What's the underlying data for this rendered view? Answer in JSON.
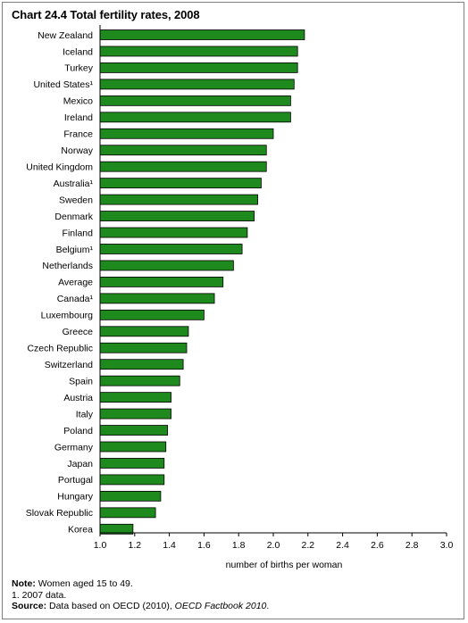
{
  "chart_data": {
    "type": "bar",
    "orientation": "horizontal",
    "title": "Chart 24.4 Total fertility rates, 2008",
    "xlabel": "number of births per woman",
    "ylabel": "",
    "xlim": [
      1.0,
      3.0
    ],
    "x_ticks": [
      "1.0",
      "1.2",
      "1.4",
      "1.6",
      "1.8",
      "2.0",
      "2.2",
      "2.4",
      "2.6",
      "2.8",
      "3.0"
    ],
    "bar_color": "#1e8a1e",
    "categories": [
      "New Zealand",
      "Iceland",
      "Turkey",
      "United States¹",
      "Mexico",
      "Ireland",
      "France",
      "Norway",
      "United Kingdom",
      "Australia¹",
      "Sweden",
      "Denmark",
      "Finland",
      "Belgium¹",
      "Netherlands",
      "Average",
      "Canada¹",
      "Luxembourg",
      "Greece",
      "Czech Republic",
      "Switzerland",
      "Spain",
      "Austria",
      "Italy",
      "Poland",
      "Germany",
      "Japan",
      "Portugal",
      "Hungary",
      "Slovak Republic",
      "Korea"
    ],
    "values": [
      2.18,
      2.14,
      2.14,
      2.12,
      2.1,
      2.1,
      2.0,
      1.96,
      1.96,
      1.93,
      1.91,
      1.89,
      1.85,
      1.82,
      1.77,
      1.71,
      1.66,
      1.6,
      1.51,
      1.5,
      1.48,
      1.46,
      1.41,
      1.41,
      1.39,
      1.38,
      1.37,
      1.37,
      1.35,
      1.32,
      1.19
    ]
  },
  "notes": {
    "note_label": "Note:",
    "note_text": " Women aged 15 to 49.",
    "footnote": "1. 2007 data.",
    "source_label": "Source:",
    "source_text": " Data based on OECD (2010), ",
    "source_pub": "OECD Factbook 2010",
    "source_end": "."
  }
}
